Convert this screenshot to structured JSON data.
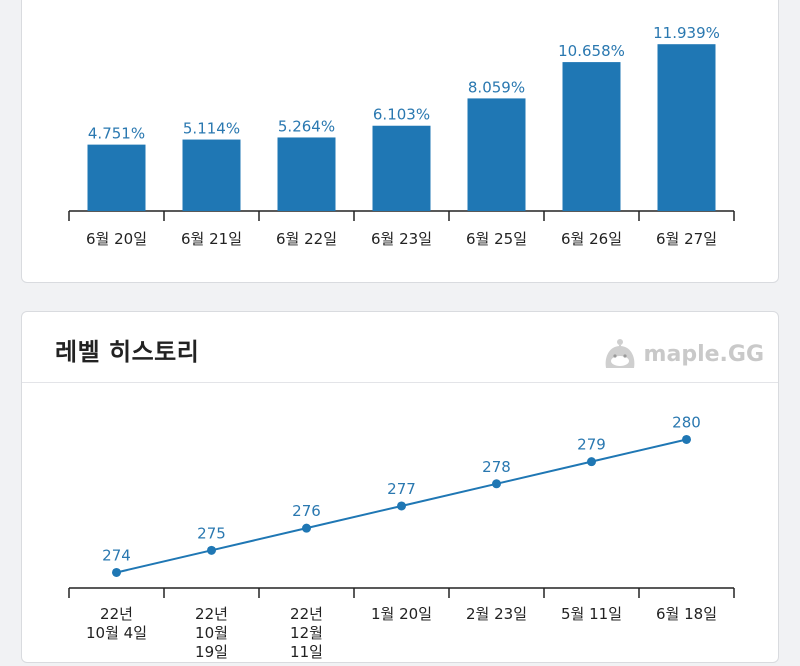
{
  "exp_card": {
    "chart_data": {
      "type": "bar",
      "categories": [
        "6월 20일",
        "6월 21일",
        "6월 22일",
        "6월 23일",
        "6월 25일",
        "6월 26일",
        "6월 27일"
      ],
      "values": [
        4.751,
        5.114,
        5.264,
        6.103,
        8.059,
        10.658,
        11.939
      ],
      "value_labels": [
        "4.751%",
        "5.114%",
        "5.264%",
        "6.103%",
        "8.059%",
        "10.658%",
        "11.939%"
      ],
      "ylim": [
        0,
        13.6
      ],
      "grid": false,
      "bar_color": "#1f77b4"
    }
  },
  "level_card": {
    "title": "레벨 히스토리",
    "watermark": "maple.GG",
    "watermark_icon": "slime-mascot-icon",
    "chart_data": {
      "type": "line",
      "categories": [
        [
          "22년",
          "10월 4일"
        ],
        [
          "22년",
          "10월",
          "19일"
        ],
        [
          "22년",
          "12월",
          "11일"
        ],
        [
          "1월 20일"
        ],
        [
          "2월 23일"
        ],
        [
          "5월 11일"
        ],
        [
          "6월 18일"
        ]
      ],
      "values": [
        274,
        275,
        276,
        277,
        278,
        279,
        280
      ],
      "ylim": [
        273.3,
        281.6
      ],
      "grid": false,
      "line_color": "#1f77b4"
    }
  }
}
